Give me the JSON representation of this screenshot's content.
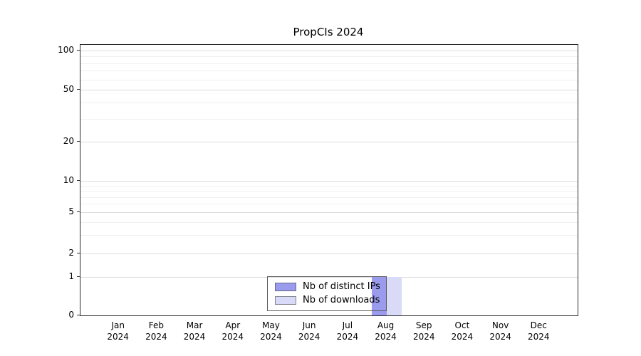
{
  "chart_data": {
    "type": "bar",
    "title": "PropCIs 2024",
    "categories": [
      "Jan 2024",
      "Feb 2024",
      "Mar 2024",
      "Apr 2024",
      "May 2024",
      "Jun 2024",
      "Jul 2024",
      "Aug 2024",
      "Sep 2024",
      "Oct 2024",
      "Nov 2024",
      "Dec 2024"
    ],
    "series": [
      {
        "name": "Nb of distinct IPs",
        "color": "#9b9bee",
        "values": [
          0,
          0,
          0,
          0,
          0,
          0,
          0,
          1,
          0,
          0,
          0,
          0
        ]
      },
      {
        "name": "Nb of downloads",
        "color": "#d9d9f8",
        "values": [
          0,
          0,
          0,
          0,
          0,
          0,
          0,
          1,
          0,
          0,
          0,
          0
        ]
      }
    ],
    "y_axis": {
      "ticks": [
        0,
        1,
        2,
        5,
        10,
        20,
        50,
        100
      ],
      "scale": "log-like",
      "minor_gridline_values": [
        3,
        4,
        6,
        7,
        8,
        9,
        30,
        40,
        60,
        70,
        80,
        90
      ]
    },
    "x_axis": {
      "label_lines": 2
    },
    "legend": {
      "position": "bottom-center",
      "entries": [
        "Nb of distinct IPs",
        "Nb of downloads"
      ]
    },
    "grid": true,
    "colors": {
      "major_grid": "#dcdcdc",
      "minor_grid": "#f0f0f0",
      "axis_border": "#2a2a2a"
    }
  }
}
